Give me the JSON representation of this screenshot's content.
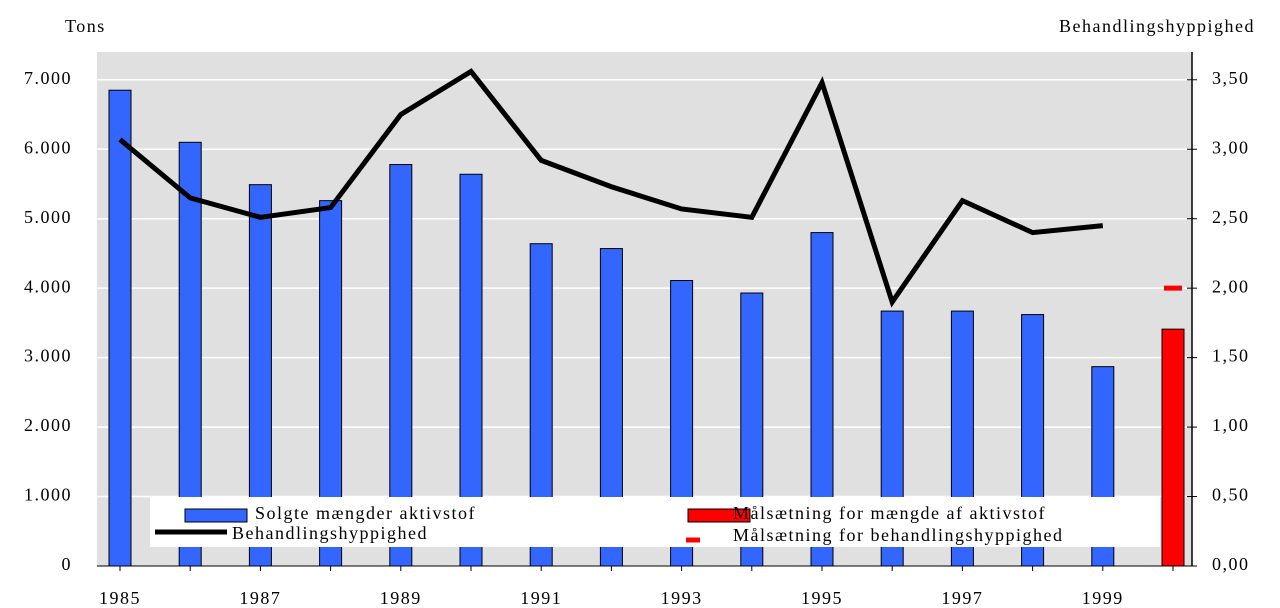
{
  "chart_data": {
    "type": "bar",
    "ylabel": "Tons",
    "y2label": "Behandlingshyppighed",
    "categories": [
      "1985",
      null,
      "1987",
      null,
      "1989",
      null,
      "1991",
      null,
      "1993",
      null,
      "1995",
      null,
      "1997",
      null,
      "1999",
      null
    ],
    "series": [
      {
        "name": "Solgte mængder aktivstof",
        "type": "bar",
        "color": "#3366ff",
        "axis": "y",
        "values": [
          6850,
          6100,
          5490,
          5260,
          5780,
          5640,
          4640,
          4570,
          4110,
          3930,
          4800,
          3670,
          3670,
          3620,
          2870,
          null
        ]
      },
      {
        "name": "Målsætning for mængde af aktivstof",
        "type": "bar",
        "color": "#ff0000",
        "axis": "y",
        "values": [
          null,
          null,
          null,
          null,
          null,
          null,
          null,
          null,
          null,
          null,
          null,
          null,
          null,
          null,
          null,
          3410
        ]
      },
      {
        "name": "Behandlingshyppighed",
        "type": "line",
        "color": "#000000",
        "axis": "y2",
        "values": [
          3.07,
          2.65,
          2.51,
          2.58,
          3.25,
          3.56,
          2.92,
          2.73,
          2.57,
          2.51,
          3.48,
          1.9,
          2.63,
          2.4,
          2.45,
          null
        ]
      },
      {
        "name": "Målsætning for behandlingshyppighed",
        "type": "dash",
        "color": "#ff0000",
        "axis": "y2",
        "values": [
          null,
          null,
          null,
          null,
          null,
          null,
          null,
          null,
          null,
          null,
          null,
          null,
          null,
          null,
          null,
          2.0
        ]
      }
    ],
    "ylim": [
      0,
      7400
    ],
    "yticks": [
      0,
      {
        "value": 1000,
        "label": "1.000"
      },
      {
        "value": 2000,
        "label": "2.000"
      },
      {
        "value": 3000,
        "label": "3.000"
      },
      {
        "value": 4000,
        "label": "4.000"
      },
      {
        "value": 5000,
        "label": "5.000"
      },
      {
        "value": 6000,
        "label": "6.000"
      },
      {
        "value": 7000,
        "label": "7.000"
      }
    ],
    "y2lim": [
      0,
      3.7
    ],
    "y2ticks": [
      {
        "value": 0,
        "label": "0,00"
      },
      {
        "value": 0.5,
        "label": "0,50"
      },
      {
        "value": 1,
        "label": "1,00"
      },
      {
        "value": 1.5,
        "label": "1,50"
      },
      {
        "value": 2,
        "label": "2,00"
      },
      {
        "value": 2.5,
        "label": "2,50"
      },
      {
        "value": 3,
        "label": "3,00"
      },
      {
        "value": 3.5,
        "label": "3,50"
      }
    ],
    "grid": true
  }
}
